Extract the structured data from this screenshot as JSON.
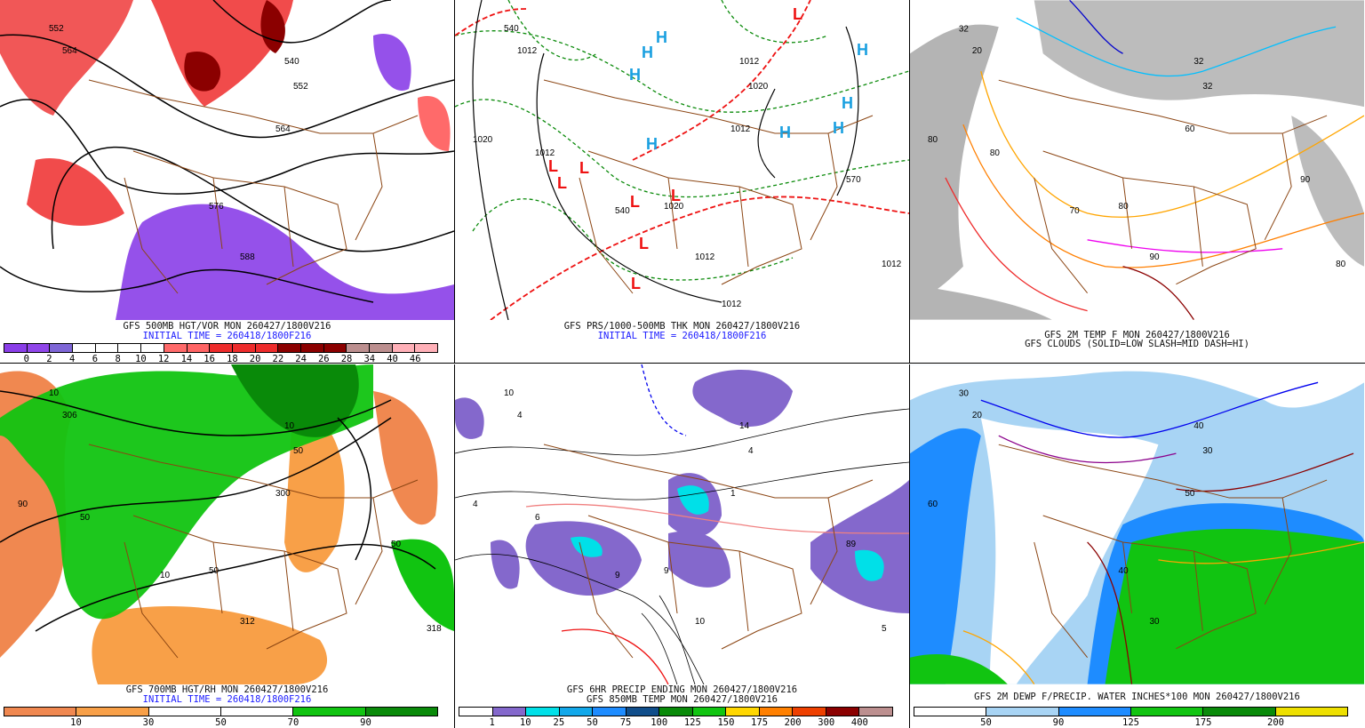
{
  "panels": [
    {
      "id": "vort500",
      "caption1": "GFS 500MB HGT/VOR MON 260427/1800V216",
      "caption2": "INITIAL TIME = 260418/1800F216",
      "contour_labels": [
        "552",
        "564",
        "540",
        "552",
        "564",
        "576",
        "588"
      ],
      "colorbar": {
        "colors": [
          "#8a3ee8",
          "#9046ea",
          "#7e66d6",
          "#ffffff",
          "#ffffff",
          "#ffffff",
          "#ffffff",
          "#ff6a6a",
          "#ff6464",
          "#ee2c2c",
          "#ee2c2c",
          "#ee2c2c",
          "#8b0000",
          "#8b0000",
          "#8b0000",
          "#bc8f8f",
          "#bc8f8f",
          "#ffb0b8",
          "#ffb0b8"
        ],
        "labels": [
          "0",
          "2",
          "4",
          "6",
          "8",
          "10",
          "12",
          "14",
          "16",
          "18",
          "20",
          "22",
          "24",
          "26",
          "28",
          "34",
          "40",
          "46"
        ]
      }
    },
    {
      "id": "mslp-thk",
      "caption1": "GFS PRS/1000-500MB THK MON 260427/1800V216",
      "caption2": "INITIAL TIME = 260418/1800F216",
      "contour_labels": [
        "540",
        "1012",
        "1012",
        "1020",
        "1012",
        "1020",
        "1012",
        "1020",
        "1012",
        "540",
        "570",
        "1012",
        "1012"
      ],
      "high_symbol": "H",
      "low_symbol": "L",
      "high_color": "#1aa0e0",
      "low_color": "#ee1111"
    },
    {
      "id": "temp2m-clouds",
      "caption1": "GFS 2M TEMP F MON 260427/1800V216",
      "caption2": "GFS CLOUDS (SOLID=LOW SLASH=MID DASH=HI)",
      "contour_labels": [
        "32",
        "20",
        "32",
        "32",
        "60",
        "80",
        "90",
        "80",
        "80",
        "70",
        "90",
        "80"
      ]
    },
    {
      "id": "rh700",
      "caption1": "GFS 700MB HGT/RH MON 260427/1800V216",
      "caption2": "INITIAL TIME = 260418/1800F216",
      "contour_labels": [
        "10",
        "306",
        "10",
        "50",
        "300",
        "50",
        "312",
        "90",
        "50",
        "10",
        "50",
        "318"
      ],
      "colorbar": {
        "colors": [
          "#f08850",
          "#f8a048",
          "#ffffff",
          "#ffffff",
          "#11c411",
          "#098a09"
        ],
        "labels": [
          "10",
          "30",
          "50",
          "70",
          "90"
        ]
      }
    },
    {
      "id": "precip6hr-t850",
      "caption1": "GFS 6HR PRECIP ENDING MON 260427/1800V216",
      "caption2": "GFS 850MB TEMP MON 260427/1800V216",
      "contour_labels": [
        "10",
        "4",
        "14",
        "4",
        "1",
        "9",
        "10",
        "4",
        "6",
        "9",
        "89",
        "5"
      ],
      "colorbar": {
        "colors": [
          "#ffffff",
          "#8468cc",
          "#00e0e8",
          "#12a8ea",
          "#1e8cff",
          "#104e8b",
          "#098a09",
          "#11c411",
          "#ffd700",
          "#ff8000",
          "#ee4000",
          "#8b0000",
          "#bc8f8f"
        ],
        "labels": [
          "1",
          "10",
          "25",
          "50",
          "75",
          "100",
          "125",
          "150",
          "175",
          "200",
          "300",
          "400"
        ]
      }
    },
    {
      "id": "dewp-pwat",
      "caption1": "GFS 2M DEWP F/PRECIP. WATER INCHES*100 MON 260427/1800V216",
      "caption2": "",
      "contour_labels": [
        "30",
        "20",
        "40",
        "30",
        "50",
        "40",
        "30",
        "60"
      ],
      "colorbar": {
        "colors": [
          "#ffffff",
          "#a8d4f4",
          "#1e8cff",
          "#11c411",
          "#098a09",
          "#eee000"
        ],
        "labels": [
          "50",
          "90",
          "125",
          "175",
          "200"
        ]
      }
    }
  ]
}
